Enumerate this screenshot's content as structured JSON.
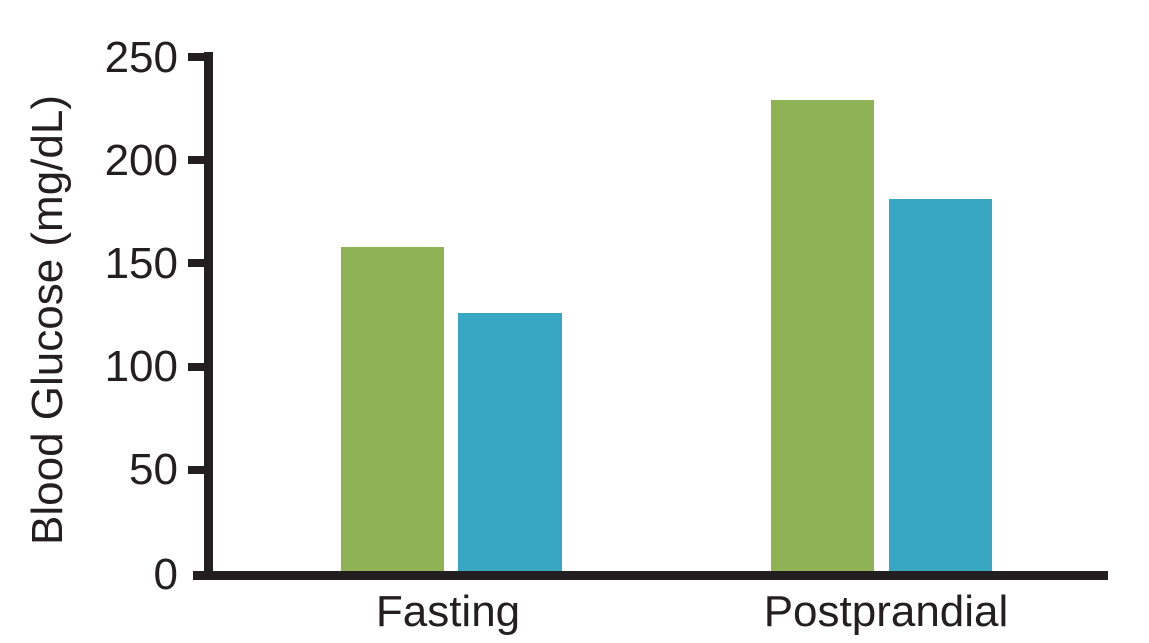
{
  "chart_data": {
    "type": "bar",
    "title": "",
    "xlabel": "",
    "ylabel": "Blood Glucose (mg/dL)",
    "categories": [
      "Fasting",
      "Postprandial"
    ],
    "series": [
      {
        "name": "green-series",
        "color": "#8fb254",
        "values": [
          157,
          228
        ]
      },
      {
        "name": "blue-series",
        "color": "#38a7c4",
        "values": [
          125,
          180
        ]
      }
    ],
    "ylim": [
      0,
      250
    ],
    "yticks": [
      0,
      50,
      100,
      150,
      200,
      250
    ],
    "grid": false,
    "legend_position": "none",
    "axis_color": "#231f20"
  }
}
